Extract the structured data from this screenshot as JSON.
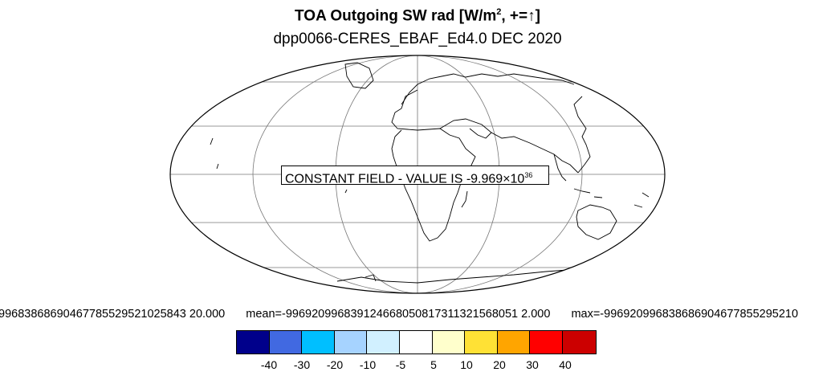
{
  "title": {
    "main": "TOA Outgoing SW rad [W/m",
    "superscript": "2",
    "suffix": ", +=",
    "arrow": "↑",
    "close": "]"
  },
  "subtitle": "dpp0066-CERES_EBAF_Ed4.0 DEC 2020",
  "constant_field": {
    "text": "CONSTANT FIELD - VALUE IS -9.969×10",
    "exponent": "36"
  },
  "stats": {
    "min": "99683868690467785529521025843 20.000",
    "mean": "mean=-996920996839124668050817311321568051 2.000",
    "max": "max=-996920996838686904677855295210"
  },
  "colorbar": {
    "colors": [
      "#00008b",
      "#4169e1",
      "#00bfff",
      "#a6d3ff",
      "#d1f0ff",
      "#ffffff",
      "#ffffcc",
      "#ffe135",
      "#ffa500",
      "#ff0000",
      "#cc0000"
    ],
    "labels": [
      "-40",
      "-30",
      "-20",
      "-10",
      "-5",
      "5",
      "10",
      "20",
      "30",
      "40"
    ]
  }
}
